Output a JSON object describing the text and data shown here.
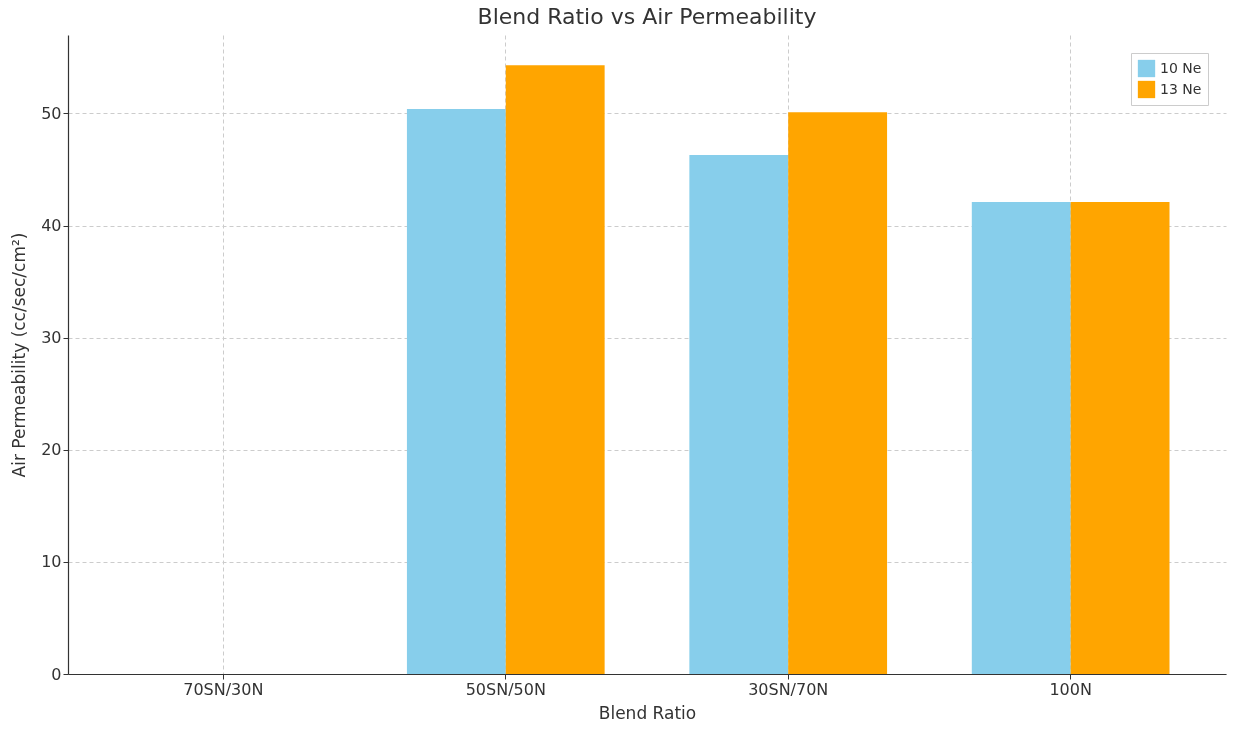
{
  "chart_data": {
    "type": "bar",
    "title": "Blend Ratio vs Air Permeability",
    "xlabel": "Blend Ratio",
    "ylabel": "Air Permeability (cc/sec/cm²)",
    "categories": [
      "70SN/30N",
      "50SN/50N",
      "30SN/70N",
      "100N"
    ],
    "series": [
      {
        "name": "10 Ne",
        "color": "#87ceeb",
        "values": [
          null,
          50.4,
          46.3,
          42.1
        ]
      },
      {
        "name": "13 Ne",
        "color": "#ffa500",
        "values": [
          null,
          54.3,
          50.1,
          42.1
        ]
      }
    ],
    "ylim": [
      0,
      57
    ],
    "yticks": [
      0,
      10,
      20,
      30,
      40,
      50
    ],
    "grid": true,
    "legend": "top right"
  }
}
